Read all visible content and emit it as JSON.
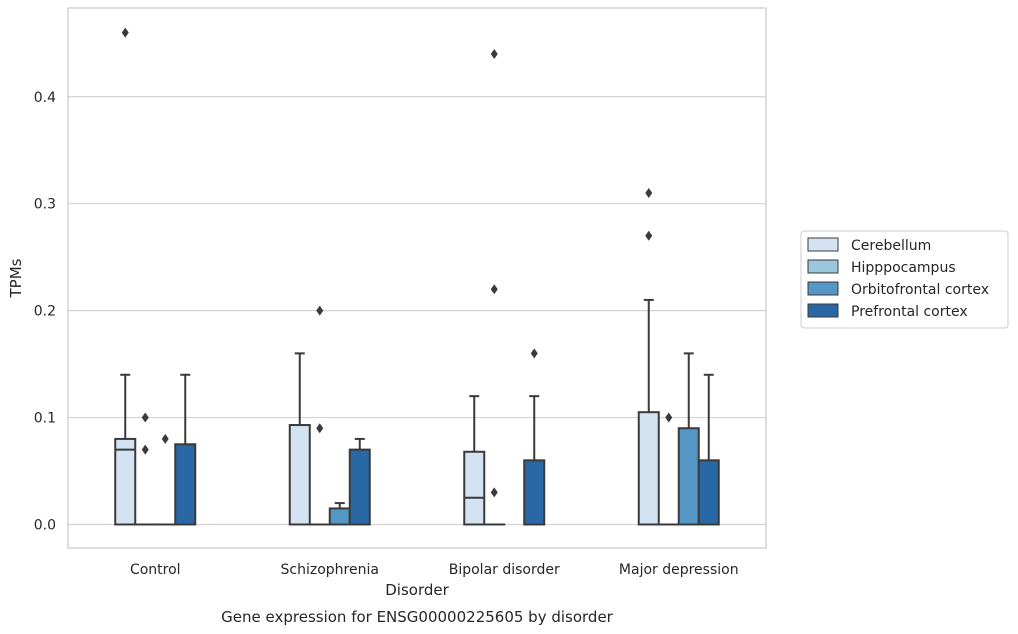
{
  "chart_data": {
    "type": "box",
    "title": "Gene expression for ENSG00000225605 by disorder",
    "xlabel": "Disorder",
    "ylabel": "TPMs",
    "ylim": [
      -0.022,
      0.483
    ],
    "yticks": [
      0.0,
      0.1,
      0.2,
      0.3,
      0.4
    ],
    "ytick_labels": [
      "0.0",
      "0.1",
      "0.2",
      "0.3",
      "0.4"
    ],
    "grid": "horizontal",
    "legend_position": "right",
    "categories": [
      "Control",
      "Schizophrenia",
      "Bipolar disorder",
      "Major depression"
    ],
    "series": [
      {
        "name": "Cerebellum",
        "color": "#d4e3f2",
        "boxes": [
          {
            "q1": 0.0,
            "median": 0.07,
            "q3": 0.08,
            "whisker_low": 0.0,
            "whisker_high": 0.14,
            "outliers": [
              0.46
            ]
          },
          {
            "q1": 0.0,
            "median": 0.0,
            "q3": 0.093,
            "whisker_low": 0.0,
            "whisker_high": 0.16,
            "outliers": []
          },
          {
            "q1": 0.0,
            "median": 0.025,
            "q3": 0.068,
            "whisker_low": 0.0,
            "whisker_high": 0.12,
            "outliers": []
          },
          {
            "q1": 0.0,
            "median": 0.0,
            "q3": 0.105,
            "whisker_low": 0.0,
            "whisker_high": 0.21,
            "outliers": [
              0.27,
              0.31
            ]
          }
        ]
      },
      {
        "name": "Hipppocampus",
        "color": "#9cc5de",
        "boxes": [
          {
            "q1": 0.0,
            "median": 0.0,
            "q3": 0.0,
            "whisker_low": 0.0,
            "whisker_high": 0.0,
            "outliers": [
              0.07,
              0.1
            ]
          },
          {
            "q1": 0.0,
            "median": 0.0,
            "q3": 0.0,
            "whisker_low": 0.0,
            "whisker_high": 0.0,
            "outliers": [
              0.09,
              0.2
            ]
          },
          {
            "q1": 0.0,
            "median": 0.0,
            "q3": 0.0,
            "whisker_low": 0.0,
            "whisker_high": 0.0,
            "outliers": [
              0.03,
              0.22,
              0.44
            ]
          },
          {
            "q1": 0.0,
            "median": 0.0,
            "q3": 0.0,
            "whisker_low": 0.0,
            "whisker_high": 0.0,
            "outliers": [
              0.1
            ]
          }
        ]
      },
      {
        "name": "Orbitofrontal cortex",
        "color": "#5496c4",
        "boxes": [
          {
            "q1": 0.0,
            "median": 0.0,
            "q3": 0.0,
            "whisker_low": 0.0,
            "whisker_high": 0.0,
            "outliers": [
              0.08
            ]
          },
          {
            "q1": 0.0,
            "median": 0.0,
            "q3": 0.015,
            "whisker_low": 0.0,
            "whisker_high": 0.02,
            "outliers": []
          },
          null,
          {
            "q1": 0.0,
            "median": 0.0,
            "q3": 0.09,
            "whisker_low": 0.0,
            "whisker_high": 0.16,
            "outliers": []
          }
        ]
      },
      {
        "name": "Prefrontal cortex",
        "color": "#2a67a5",
        "boxes": [
          {
            "q1": 0.0,
            "median": 0.0,
            "q3": 0.075,
            "whisker_low": 0.0,
            "whisker_high": 0.14,
            "outliers": []
          },
          {
            "q1": 0.0,
            "median": 0.0,
            "q3": 0.07,
            "whisker_low": 0.0,
            "whisker_high": 0.08,
            "outliers": []
          },
          {
            "q1": 0.0,
            "median": 0.0,
            "q3": 0.06,
            "whisker_low": 0.0,
            "whisker_high": 0.12,
            "outliers": [
              0.16
            ]
          },
          {
            "q1": 0.0,
            "median": 0.0,
            "q3": 0.06,
            "whisker_low": 0.0,
            "whisker_high": 0.14,
            "outliers": []
          }
        ]
      }
    ]
  }
}
